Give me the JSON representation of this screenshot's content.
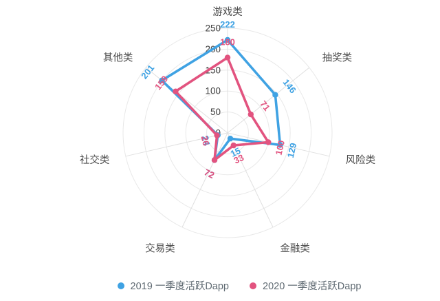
{
  "chart_data": {
    "type": "radar",
    "title": "",
    "categories": [
      "游戏类",
      "抽奖类",
      "风险类",
      "金融类",
      "交易类",
      "社交类",
      "其他类"
    ],
    "max": 250,
    "tick_values": [
      0,
      50,
      100,
      150,
      200,
      250
    ],
    "grid_shape": "circle",
    "grid_rings": 5,
    "legend_position": "bottom",
    "series": [
      {
        "name": "2019 一季度活跃Dapp",
        "color": "#3fa2e3",
        "values": [
          222,
          146,
          129,
          15,
          72,
          24,
          201
        ]
      },
      {
        "name": "2020 一季度活跃Dapp",
        "color": "#e2537f",
        "values": [
          180,
          71,
          100,
          33,
          72,
          26,
          159
        ]
      }
    ]
  },
  "legend": {
    "items": [
      {
        "label": "2019 一季度活跃Dapp",
        "color": "#3fa2e3"
      },
      {
        "label": "2020 一季度活跃Dapp",
        "color": "#e2537f"
      }
    ]
  },
  "colors": {
    "ring": "#e8e8e8",
    "spoke": "#e0e0e0",
    "tick_label": "#3e3e3e",
    "category_label": "#4c4c4c",
    "legend_text": "#5f6a72",
    "background": "#ffffff"
  }
}
